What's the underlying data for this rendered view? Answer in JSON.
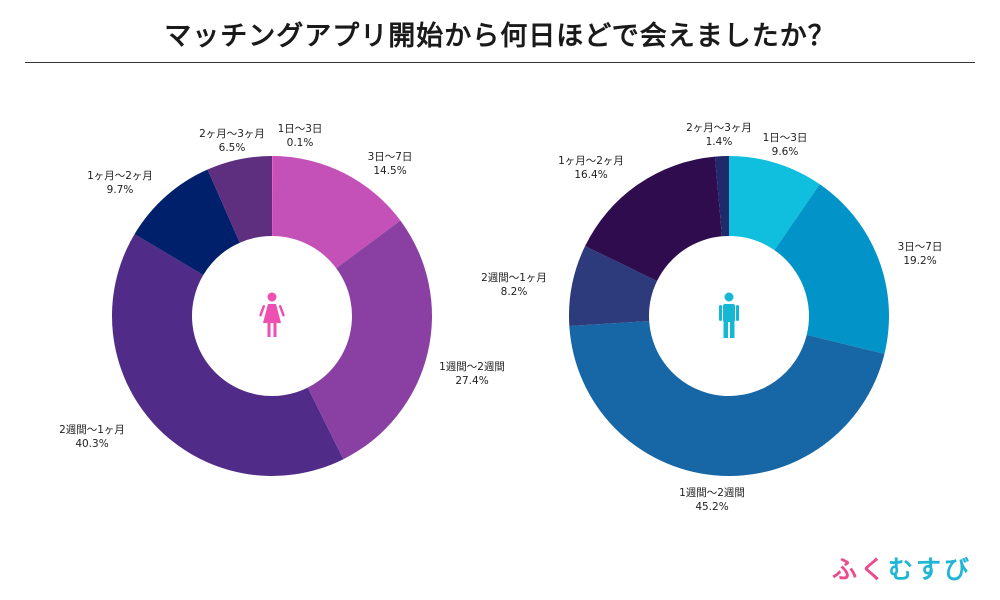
{
  "title": "マッチングアプリ開始から何日ほどで会えましたか？",
  "logo": {
    "part1": "ふく",
    "part2": "むすび"
  },
  "chart_data": [
    {
      "type": "pie",
      "icon": "female-icon",
      "icon_color": "#ee4fb3",
      "slices": [
        {
          "label": "1日〜3日",
          "value": 0.1,
          "value_text": "0.1%",
          "color": "#f25fc5"
        },
        {
          "label": "3日〜7日",
          "value": 14.5,
          "value_text": "14.5%",
          "color": "#c451b8"
        },
        {
          "label": "1週間〜2週間",
          "value": 27.4,
          "value_text": "27.4%",
          "color": "#8a40a3"
        },
        {
          "label": "2週間〜1ヶ月",
          "value": 40.3,
          "value_text": "40.3%",
          "color": "#502c88"
        },
        {
          "label": "1ヶ月〜2ヶ月",
          "value": 9.7,
          "value_text": "9.7%",
          "color": "#00206b"
        },
        {
          "label": "2ヶ月〜3ヶ月",
          "value": 6.5,
          "value_text": "6.5%",
          "color": "#5e2f7e"
        }
      ]
    },
    {
      "type": "pie",
      "icon": "male-icon",
      "icon_color": "#15b8d4",
      "slices": [
        {
          "label": "1日〜3日",
          "value": 9.6,
          "value_text": "9.6%",
          "color": "#0fbfdd"
        },
        {
          "label": "3日〜7日",
          "value": 19.2,
          "value_text": "19.2%",
          "color": "#0293c8"
        },
        {
          "label": "1週間〜2週間",
          "value": 45.2,
          "value_text": "45.2%",
          "color": "#1767a6"
        },
        {
          "label": "2週間〜1ヶ月",
          "value": 8.2,
          "value_text": "8.2%",
          "color": "#2d3a7c"
        },
        {
          "label": "1ヶ月〜2ヶ月",
          "value": 16.4,
          "value_text": "16.4%",
          "color": "#2e0c4d"
        },
        {
          "label": "2ヶ月〜3ヶ月",
          "value": 1.4,
          "value_text": "1.4%",
          "color": "#1e2a6a"
        }
      ]
    }
  ]
}
